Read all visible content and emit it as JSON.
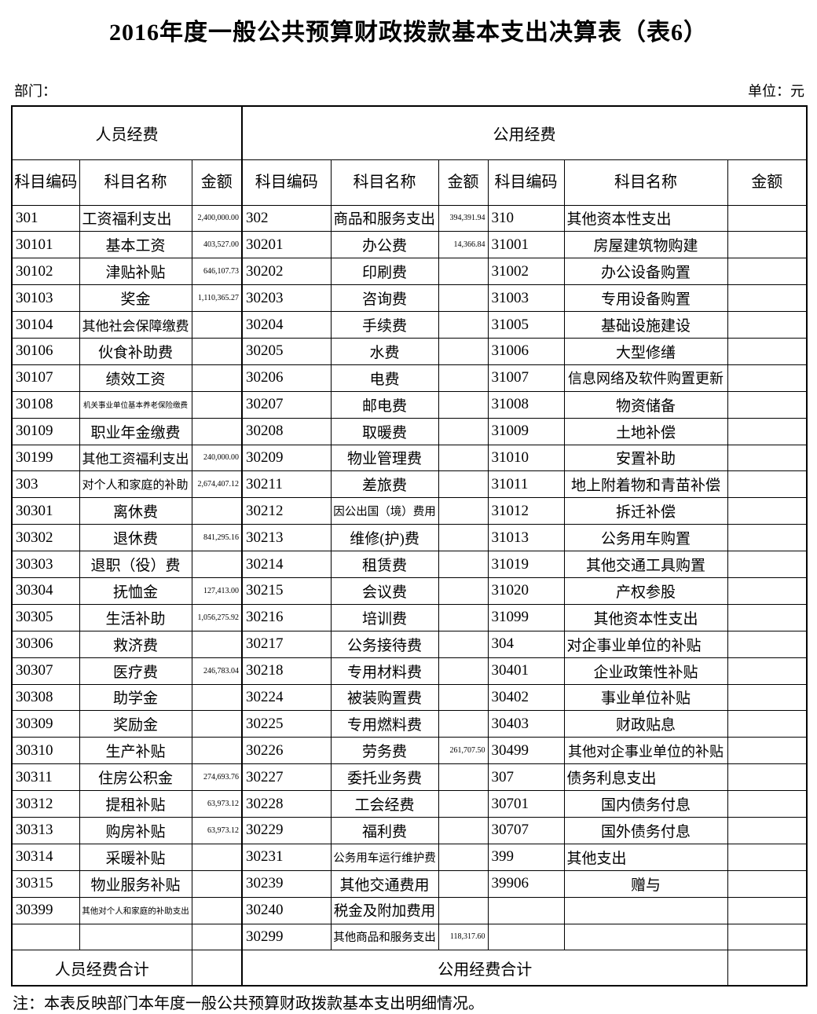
{
  "title": "2016年度一般公共预算财政拨款基本支出决算表（表6）",
  "department_label": "部门：",
  "unit_label": "单位：元",
  "note": "注：本表反映部门本年度一般公共预算财政拨款基本支出明细情况。",
  "table": {
    "section_headers": {
      "personnel": "人员经费",
      "public": "公用经费"
    },
    "column_headers": {
      "code": "科目编码",
      "name": "科目名称",
      "amount": "金额"
    },
    "totals": {
      "personnel_label": "人员经费合计",
      "personnel_amount": "",
      "public_label": "公用经费合计",
      "public_amount": ""
    },
    "rows": [
      {
        "p": {
          "code": "301",
          "name": "工资福利支出",
          "amount": "2,400,000.00",
          "parent": true
        },
        "m": {
          "code": "302",
          "name": "商品和服务支出",
          "amount": "394,391.94",
          "parent": true
        },
        "r": {
          "code": "310",
          "name": "其他资本性支出",
          "amount": "",
          "parent": true
        }
      },
      {
        "p": {
          "code": "30101",
          "name": "基本工资",
          "amount": "403,527.00",
          "parent": false
        },
        "m": {
          "code": "30201",
          "name": "办公费",
          "amount": "14,366.84",
          "parent": false
        },
        "r": {
          "code": "31001",
          "name": "房屋建筑物购建",
          "amount": "",
          "parent": false
        }
      },
      {
        "p": {
          "code": "30102",
          "name": "津贴补贴",
          "amount": "646,107.73",
          "parent": false
        },
        "m": {
          "code": "30202",
          "name": "印刷费",
          "amount": "",
          "parent": false
        },
        "r": {
          "code": "31002",
          "name": "办公设备购置",
          "amount": "",
          "parent": false
        }
      },
      {
        "p": {
          "code": "30103",
          "name": "奖金",
          "amount": "1,110,365.27",
          "parent": false
        },
        "m": {
          "code": "30203",
          "name": "咨询费",
          "amount": "",
          "parent": false
        },
        "r": {
          "code": "31003",
          "name": "专用设备购置",
          "amount": "",
          "parent": false
        }
      },
      {
        "p": {
          "code": "30104",
          "name": "其他社会保障缴费",
          "amount": "",
          "parent": false
        },
        "m": {
          "code": "30204",
          "name": "手续费",
          "amount": "",
          "parent": false
        },
        "r": {
          "code": "31005",
          "name": "基础设施建设",
          "amount": "",
          "parent": false
        }
      },
      {
        "p": {
          "code": "30106",
          "name": "伙食补助费",
          "amount": "",
          "parent": false
        },
        "m": {
          "code": "30205",
          "name": "水费",
          "amount": "",
          "parent": false
        },
        "r": {
          "code": "31006",
          "name": "大型修缮",
          "amount": "",
          "parent": false
        }
      },
      {
        "p": {
          "code": "30107",
          "name": "绩效工资",
          "amount": "",
          "parent": false
        },
        "m": {
          "code": "30206",
          "name": "电费",
          "amount": "",
          "parent": false
        },
        "r": {
          "code": "31007",
          "name": "信息网络及软件购置更新",
          "amount": "",
          "parent": false
        }
      },
      {
        "p": {
          "code": "30108",
          "name": "机关事业单位基本养老保险缴费",
          "amount": "",
          "parent": false
        },
        "m": {
          "code": "30207",
          "name": "邮电费",
          "amount": "",
          "parent": false
        },
        "r": {
          "code": "31008",
          "name": "物资储备",
          "amount": "",
          "parent": false
        }
      },
      {
        "p": {
          "code": "30109",
          "name": "职业年金缴费",
          "amount": "",
          "parent": false
        },
        "m": {
          "code": "30208",
          "name": "取暖费",
          "amount": "",
          "parent": false
        },
        "r": {
          "code": "31009",
          "name": "土地补偿",
          "amount": "",
          "parent": false
        }
      },
      {
        "p": {
          "code": "30199",
          "name": "其他工资福利支出",
          "amount": "240,000.00",
          "parent": false
        },
        "m": {
          "code": "30209",
          "name": "物业管理费",
          "amount": "",
          "parent": false
        },
        "r": {
          "code": "31010",
          "name": "安置补助",
          "amount": "",
          "parent": false
        }
      },
      {
        "p": {
          "code": "303",
          "name": "对个人和家庭的补助",
          "amount": "2,674,407.12",
          "parent": true
        },
        "m": {
          "code": "30211",
          "name": "差旅费",
          "amount": "",
          "parent": false
        },
        "r": {
          "code": "31011",
          "name": "地上附着物和青苗补偿",
          "amount": "",
          "parent": false
        }
      },
      {
        "p": {
          "code": "30301",
          "name": "离休费",
          "amount": "",
          "parent": false
        },
        "m": {
          "code": "30212",
          "name": "因公出国（境）费用",
          "amount": "",
          "parent": false
        },
        "r": {
          "code": "31012",
          "name": "拆迁补偿",
          "amount": "",
          "parent": false
        }
      },
      {
        "p": {
          "code": "30302",
          "name": "退休费",
          "amount": "841,295.16",
          "parent": false
        },
        "m": {
          "code": "30213",
          "name": "维修(护)费",
          "amount": "",
          "parent": false
        },
        "r": {
          "code": "31013",
          "name": "公务用车购置",
          "amount": "",
          "parent": false
        }
      },
      {
        "p": {
          "code": "30303",
          "name": "退职（役）费",
          "amount": "",
          "parent": false
        },
        "m": {
          "code": "30214",
          "name": "租赁费",
          "amount": "",
          "parent": false
        },
        "r": {
          "code": "31019",
          "name": "其他交通工具购置",
          "amount": "",
          "parent": false
        }
      },
      {
        "p": {
          "code": "30304",
          "name": "抚恤金",
          "amount": "127,413.00",
          "parent": false
        },
        "m": {
          "code": "30215",
          "name": "会议费",
          "amount": "",
          "parent": false
        },
        "r": {
          "code": "31020",
          "name": "产权参股",
          "amount": "",
          "parent": false
        }
      },
      {
        "p": {
          "code": "30305",
          "name": "生活补助",
          "amount": "1,056,275.92",
          "parent": false
        },
        "m": {
          "code": "30216",
          "name": "培训费",
          "amount": "",
          "parent": false
        },
        "r": {
          "code": "31099",
          "name": "其他资本性支出",
          "amount": "",
          "parent": false
        }
      },
      {
        "p": {
          "code": "30306",
          "name": "救济费",
          "amount": "",
          "parent": false
        },
        "m": {
          "code": "30217",
          "name": "公务接待费",
          "amount": "",
          "parent": false
        },
        "r": {
          "code": "304",
          "name": "对企事业单位的补贴",
          "amount": "",
          "parent": true
        }
      },
      {
        "p": {
          "code": "30307",
          "name": "医疗费",
          "amount": "246,783.04",
          "parent": false
        },
        "m": {
          "code": "30218",
          "name": "专用材料费",
          "amount": "",
          "parent": false
        },
        "r": {
          "code": "30401",
          "name": "企业政策性补贴",
          "amount": "",
          "parent": false
        }
      },
      {
        "p": {
          "code": "30308",
          "name": "助学金",
          "amount": "",
          "parent": false
        },
        "m": {
          "code": "30224",
          "name": "被装购置费",
          "amount": "",
          "parent": false
        },
        "r": {
          "code": "30402",
          "name": "事业单位补贴",
          "amount": "",
          "parent": false
        }
      },
      {
        "p": {
          "code": "30309",
          "name": "奖励金",
          "amount": "",
          "parent": false
        },
        "m": {
          "code": "30225",
          "name": "专用燃料费",
          "amount": "",
          "parent": false
        },
        "r": {
          "code": "30403",
          "name": "财政贴息",
          "amount": "",
          "parent": false
        }
      },
      {
        "p": {
          "code": "30310",
          "name": "生产补贴",
          "amount": "",
          "parent": false
        },
        "m": {
          "code": "30226",
          "name": "劳务费",
          "amount": "261,707.50",
          "parent": false
        },
        "r": {
          "code": "30499",
          "name": "其他对企事业单位的补贴",
          "amount": "",
          "parent": false
        }
      },
      {
        "p": {
          "code": "30311",
          "name": "住房公积金",
          "amount": "274,693.76",
          "parent": false
        },
        "m": {
          "code": "30227",
          "name": "委托业务费",
          "amount": "",
          "parent": false
        },
        "r": {
          "code": "307",
          "name": "债务利息支出",
          "amount": "",
          "parent": true
        }
      },
      {
        "p": {
          "code": "30312",
          "name": "提租补贴",
          "amount": "63,973.12",
          "parent": false
        },
        "m": {
          "code": "30228",
          "name": "工会经费",
          "amount": "",
          "parent": false
        },
        "r": {
          "code": "30701",
          "name": "国内债务付息",
          "amount": "",
          "parent": false
        }
      },
      {
        "p": {
          "code": "30313",
          "name": "购房补贴",
          "amount": "63,973.12",
          "parent": false
        },
        "m": {
          "code": "30229",
          "name": "福利费",
          "amount": "",
          "parent": false
        },
        "r": {
          "code": "30707",
          "name": "国外债务付息",
          "amount": "",
          "parent": false
        }
      },
      {
        "p": {
          "code": "30314",
          "name": "采暖补贴",
          "amount": "",
          "parent": false
        },
        "m": {
          "code": "30231",
          "name": "公务用车运行维护费",
          "amount": "",
          "parent": false
        },
        "r": {
          "code": "399",
          "name": "其他支出",
          "amount": "",
          "parent": true
        }
      },
      {
        "p": {
          "code": "30315",
          "name": "物业服务补贴",
          "amount": "",
          "parent": false
        },
        "m": {
          "code": "30239",
          "name": "其他交通费用",
          "amount": "",
          "parent": false
        },
        "r": {
          "code": "39906",
          "name": "赠与",
          "amount": "",
          "parent": false
        }
      },
      {
        "p": {
          "code": "30399",
          "name": "其他对个人和家庭的补助支出",
          "amount": "",
          "parent": false
        },
        "m": {
          "code": "30240",
          "name": "税金及附加费用",
          "amount": "",
          "parent": false
        },
        "r": {
          "code": "",
          "name": "",
          "amount": "",
          "parent": false
        }
      },
      {
        "p": {
          "code": "",
          "name": "",
          "amount": "",
          "parent": false
        },
        "m": {
          "code": "30299",
          "name": "其他商品和服务支出",
          "amount": "118,317.60",
          "parent": false
        },
        "r": {
          "code": "",
          "name": "",
          "amount": "",
          "parent": false
        }
      }
    ]
  }
}
